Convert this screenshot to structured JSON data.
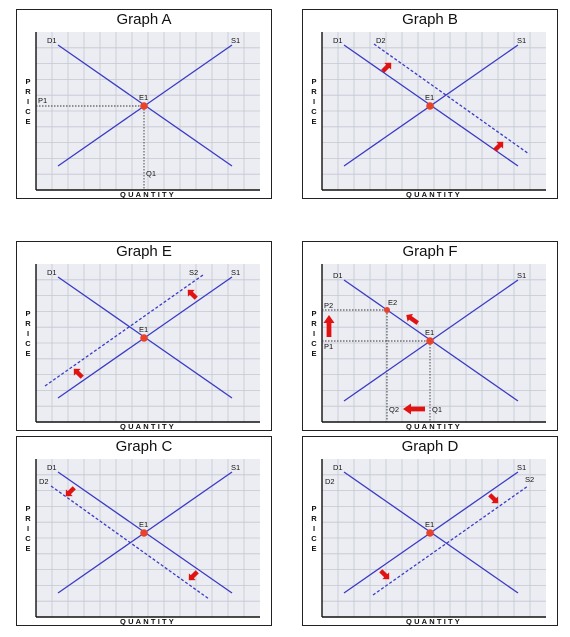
{
  "graphs": {
    "A": {
      "title": "Graph A",
      "labels": {
        "d1": "D1",
        "s1": "S1",
        "e1": "E1",
        "p1": "P1",
        "q1": "Q1"
      },
      "y_axis": "PRICE",
      "x_axis": "QUANTITY"
    },
    "B": {
      "title": "Graph B",
      "labels": {
        "d1": "D1",
        "d2": "D2",
        "s1": "S1",
        "e1": "E1"
      },
      "y_axis": "PRICE",
      "x_axis": "QUANTITY"
    },
    "E": {
      "title": "Graph E",
      "labels": {
        "d1": "D1",
        "s1": "S1",
        "s2": "S2",
        "e1": "E1"
      },
      "y_axis": "PRICE",
      "x_axis": "QUANTITY"
    },
    "F": {
      "title": "Graph F",
      "labels": {
        "d1": "D1",
        "s1": "S1",
        "e1": "E1",
        "e2": "E2",
        "p1": "P1",
        "p2": "P2",
        "q1": "Q1",
        "q2": "Q2"
      },
      "y_axis": "PRICE",
      "x_axis": "QUANTITY"
    },
    "C": {
      "title": "Graph C",
      "labels": {
        "d1": "D1",
        "d2": "D2",
        "s1": "S1",
        "e1": "E1"
      },
      "y_axis": "PRICE",
      "x_axis": "QUANTITY"
    },
    "D": {
      "title": "Graph D",
      "labels": {
        "d1": "D1",
        "d2": "D2",
        "s1": "S1",
        "s2": "S2",
        "e1": "E1"
      },
      "y_axis": "PRICE",
      "x_axis": "QUANTITY"
    }
  },
  "colors": {
    "curve": "#3a3ac4",
    "equilibrium": "#e8432a",
    "arrow": "#e01212",
    "grid_bg": "#ecedf3"
  }
}
